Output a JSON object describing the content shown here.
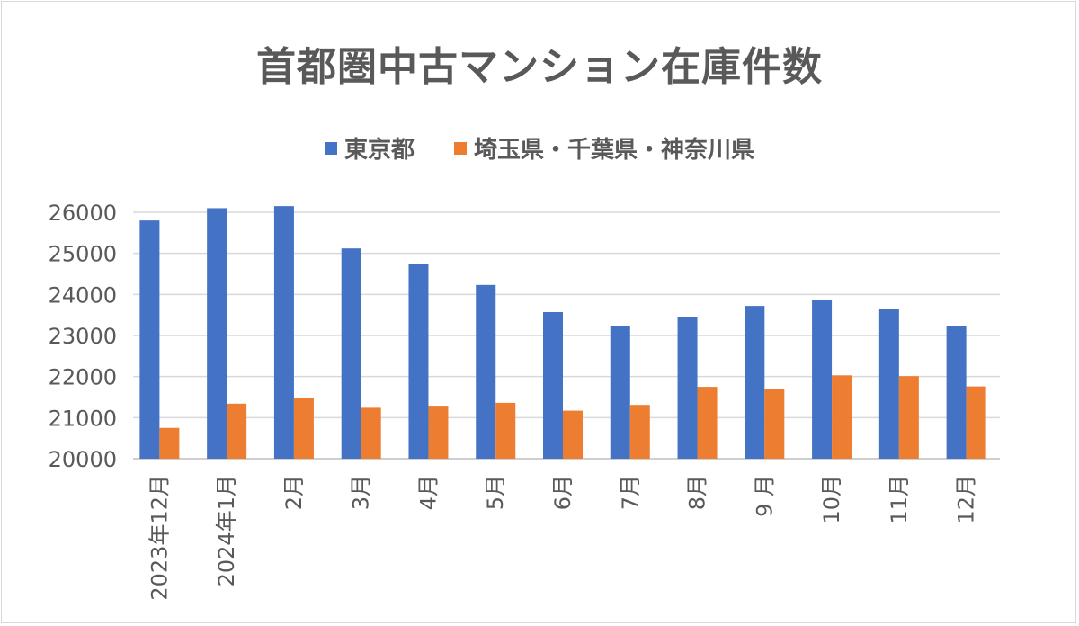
{
  "chart_data": {
    "type": "bar",
    "title": "首都圏中古マンション在庫件数",
    "categories": [
      "2023年12月",
      "2024年1月",
      "2月",
      "3月",
      "4月",
      "5月",
      "6月",
      "7月",
      "8月",
      "9 月",
      "10月",
      "11月",
      "12月"
    ],
    "series": [
      {
        "name": "東京都",
        "color": "#4472C4",
        "values": [
          25800,
          26100,
          26150,
          25120,
          24730,
          24230,
          23570,
          23220,
          23460,
          23720,
          23870,
          23640,
          23240
        ]
      },
      {
        "name": "埼玉県・千葉県・神奈川県",
        "color": "#ED7D31",
        "values": [
          20750,
          21340,
          21480,
          21240,
          21290,
          21360,
          21170,
          21310,
          21750,
          21700,
          22030,
          22010,
          21760
        ]
      }
    ],
    "ylim": [
      20000,
      26000
    ],
    "yticks": [
      20000,
      21000,
      22000,
      23000,
      24000,
      25000,
      26000
    ],
    "xlabel": "",
    "ylabel": "",
    "grid": true,
    "legend": "top-center"
  }
}
